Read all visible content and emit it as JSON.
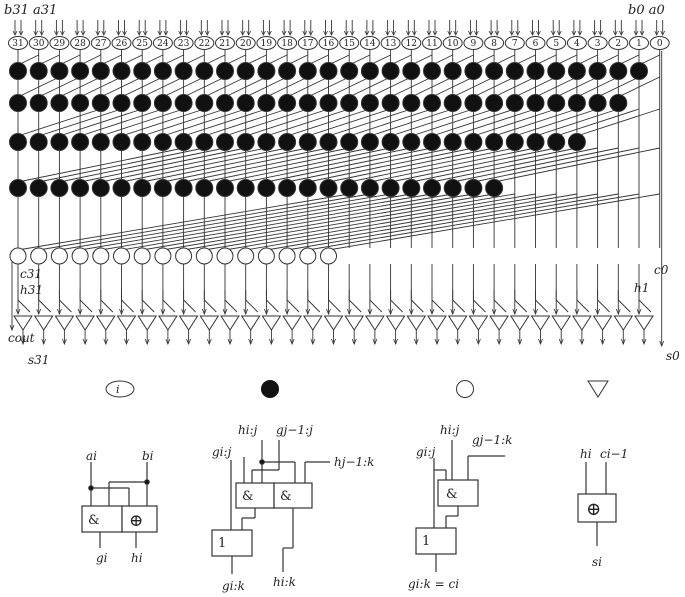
{
  "top_labels": {
    "left": "b31 a31",
    "right": "b0 a0"
  },
  "bit_indices": [
    "31",
    "30",
    "29",
    "28",
    "27",
    "26",
    "25",
    "24",
    "23",
    "22",
    "21",
    "20",
    "19",
    "18",
    "17",
    "16",
    "15",
    "14",
    "13",
    "12",
    "11",
    "10",
    "9",
    "8",
    "7",
    "6",
    "5",
    "4",
    "3",
    "2",
    "1",
    "0"
  ],
  "side_labels": {
    "c31": "c31",
    "h31": "h31",
    "cout": "cout",
    "s31": "s31",
    "c0": "c0",
    "h1": "h1",
    "s0": "s0"
  },
  "legend": {
    "ellipse_symbol": "i",
    "cell1": {
      "in_a": "ai",
      "in_b": "bi",
      "and": "&",
      "xor": "⊕",
      "out_g": "gi",
      "out_h": "hi"
    },
    "cell2": {
      "in_h": "hi:j",
      "in_g": "gi:j",
      "in_gj": "gj−1:j",
      "in_hj": "hj−1:k",
      "and1": "&",
      "and2": "&",
      "or": "1",
      "out_g": "gi:k",
      "out_h": "hi:k"
    },
    "cell3": {
      "in_h": "hi:j",
      "in_g": "gi:j",
      "in_gj": "gj−1:k",
      "and": "&",
      "or": "1",
      "out": "gi:k = ci"
    },
    "cell4": {
      "in_h": "hi",
      "in_c": "ci−1",
      "xor": "⊕",
      "out": "si"
    }
  }
}
